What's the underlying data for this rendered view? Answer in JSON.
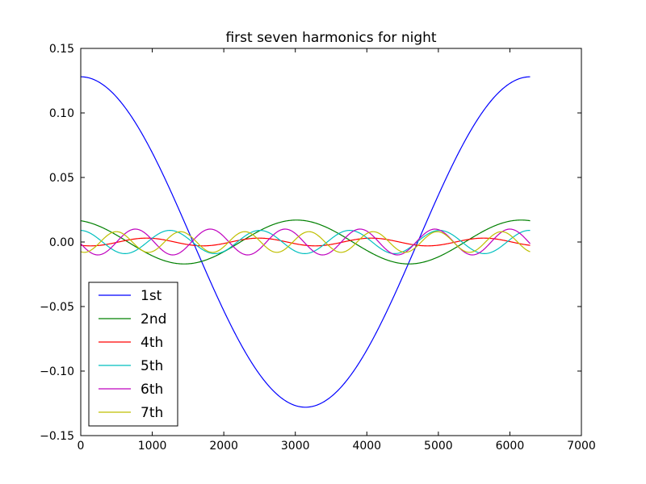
{
  "chart_data": {
    "type": "line",
    "title": "first seven harmonics for night",
    "xlabel": "",
    "ylabel": "",
    "xlim": [
      0,
      7000
    ],
    "ylim": [
      -0.15,
      0.15
    ],
    "x_ticks": [
      0,
      1000,
      2000,
      3000,
      4000,
      5000,
      6000,
      7000
    ],
    "x_tick_labels": [
      "0",
      "1000",
      "2000",
      "3000",
      "4000",
      "5000",
      "6000",
      "7000"
    ],
    "y_ticks": [
      0.15,
      0.1,
      0.05,
      0.0,
      -0.05,
      -0.1,
      -0.15
    ],
    "y_tick_labels": [
      "0.15",
      "0.10",
      "0.05",
      "0.00",
      "−0.05",
      "−0.10",
      "−0.15"
    ],
    "grid": false,
    "legend_position": "lower-left",
    "series": [
      {
        "name": "1st",
        "color": "#0000ff",
        "harmonic": 1,
        "amplitude": 0.128,
        "phase": 0.0,
        "values": [
          [
            0,
            0.128
          ],
          [
            1000,
            0.0604
          ],
          [
            1571,
            0.0
          ],
          [
            2000,
            -0.0541
          ],
          [
            3142,
            -0.128
          ],
          [
            4000,
            -0.0834
          ],
          [
            4712,
            0.0
          ],
          [
            5000,
            0.0363
          ],
          [
            6000,
            0.1229
          ],
          [
            6283,
            0.128
          ]
        ]
      },
      {
        "name": "2nd",
        "color": "#008000",
        "harmonic": 2,
        "amplitude": 0.017,
        "phase": 0.25,
        "values": [
          [
            0,
            0.0165
          ],
          [
            785,
            -0.0042
          ],
          [
            1650,
            -0.017
          ],
          [
            3220,
            0.017
          ],
          [
            4790,
            -0.017
          ],
          [
            6283,
            0.0165
          ]
        ]
      },
      {
        "name": "4th",
        "color": "#ff0000",
        "harmonic": 4,
        "amplitude": 0.003,
        "phase": 2.6,
        "values": [
          [
            0,
            -0.0026
          ],
          [
            500,
            0.0029
          ],
          [
            1000,
            -0.001
          ],
          [
            1750,
            -0.0022
          ],
          [
            3000,
            -0.0001
          ],
          [
            4350,
            -0.003
          ],
          [
            5560,
            0.003
          ],
          [
            6283,
            -0.0026
          ]
        ]
      },
      {
        "name": "5th",
        "color": "#00bfbf",
        "harmonic": 5,
        "amplitude": 0.009,
        "phase": 0.05,
        "values": [
          [
            0,
            0.009
          ],
          [
            1250,
            0.009
          ],
          [
            2510,
            0.009
          ],
          [
            3770,
            -0.0085
          ],
          [
            5030,
            0.009
          ],
          [
            6283,
            0.009
          ]
        ]
      },
      {
        "name": "6th",
        "color": "#bf00bf",
        "harmonic": 6,
        "amplitude": 0.01,
        "phase": 1.7,
        "values": [
          [
            0,
            -0.0013
          ],
          [
            800,
            0.01
          ],
          [
            1850,
            0.01
          ],
          [
            2900,
            0.01
          ],
          [
            3950,
            0.01
          ],
          [
            5000,
            0.01
          ],
          [
            6283,
            -0.0013
          ]
        ]
      },
      {
        "name": "7th",
        "color": "#bfbf00",
        "harmonic": 7,
        "amplitude": 0.008,
        "phase": 2.8,
        "values": [
          [
            0,
            -0.0075
          ],
          [
            500,
            0.008
          ],
          [
            1400,
            0.008
          ],
          [
            2300,
            0.008
          ],
          [
            3200,
            0.008
          ],
          [
            4100,
            0.008
          ],
          [
            5000,
            0.008
          ],
          [
            6283,
            -0.0075
          ]
        ]
      }
    ]
  }
}
